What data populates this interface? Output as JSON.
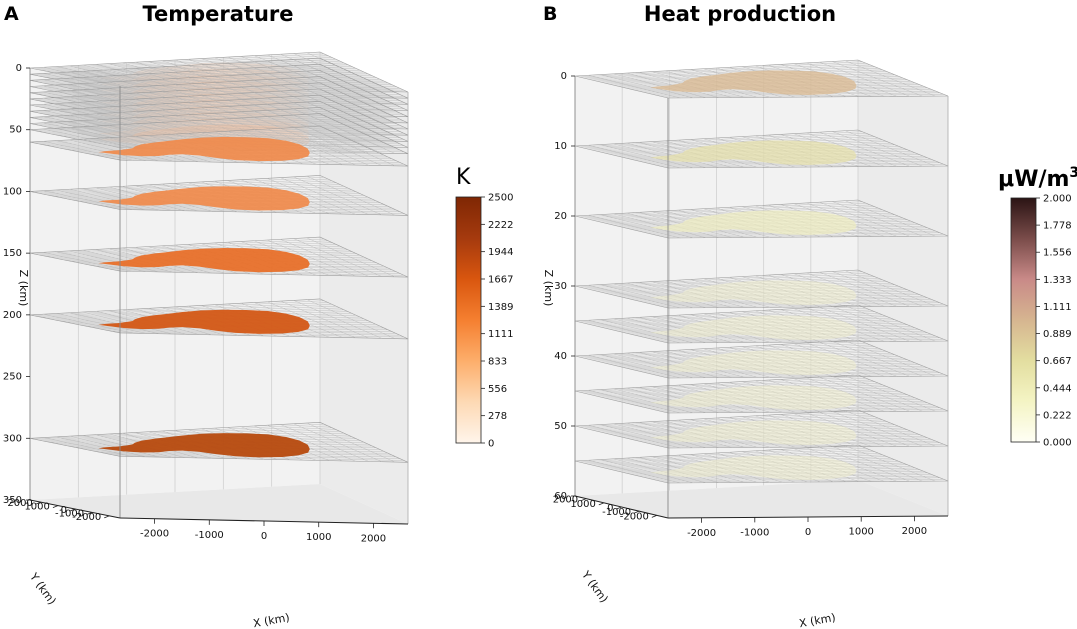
{
  "chart_data": [
    {
      "type": "3d-layered-map",
      "panel_label": "A",
      "title": "Temperature",
      "xlabel": "X (km)",
      "ylabel": "Y (km)",
      "zlabel": "Z (km)",
      "x_ticks": [
        "-2000",
        "-1000",
        "0",
        "1000",
        "2000"
      ],
      "y_ticks": [
        "2000",
        "1000",
        "0",
        "-1000",
        "-2000"
      ],
      "z_ticks": [
        "0",
        "50",
        "100",
        "150",
        "200",
        "250",
        "300",
        "350"
      ],
      "z_range": [
        0,
        350
      ],
      "layer_depths_km": [
        0,
        5,
        10,
        15,
        20,
        25,
        30,
        35,
        40,
        45,
        50,
        60,
        100,
        150,
        200,
        300
      ],
      "colorbar": {
        "label": "K",
        "ticks": [
          "2500",
          "2222",
          "1944",
          "1667",
          "1389",
          "1111",
          "833",
          "556",
          "278",
          "0"
        ],
        "range": [
          0,
          2500
        ],
        "colors": [
          "#fff5eb",
          "#fdd9b4",
          "#fdae6b",
          "#f57f30",
          "#d9560f",
          "#a53a0e",
          "#7f2704"
        ]
      }
    },
    {
      "type": "3d-layered-map",
      "panel_label": "B",
      "title": "Heat production",
      "xlabel": "X (km)",
      "ylabel": "Y (km)",
      "zlabel": "Z (km)",
      "x_ticks": [
        "-2000",
        "-1000",
        "0",
        "1000",
        "2000"
      ],
      "y_ticks": [
        "2000",
        "1000",
        "0",
        "-1000",
        "-2000"
      ],
      "z_ticks": [
        "0",
        "10",
        "20",
        "30",
        "40",
        "50",
        "60"
      ],
      "z_range": [
        0,
        60
      ],
      "layer_depths_km": [
        0,
        10,
        20,
        30,
        35,
        40,
        45,
        50,
        55
      ],
      "colorbar": {
        "label": "μW/m",
        "label_sup": "3",
        "ticks": [
          "2.000",
          "1.778",
          "1.556",
          "1.333",
          "1.111",
          "0.889",
          "0.667",
          "0.444",
          "0.222",
          "0.000"
        ],
        "range": [
          0,
          2
        ],
        "colors": [
          "#fffff5",
          "#f4f4c4",
          "#e3dea0",
          "#d6b590",
          "#c98a88",
          "#7a4c4a",
          "#2b1414"
        ]
      }
    }
  ]
}
